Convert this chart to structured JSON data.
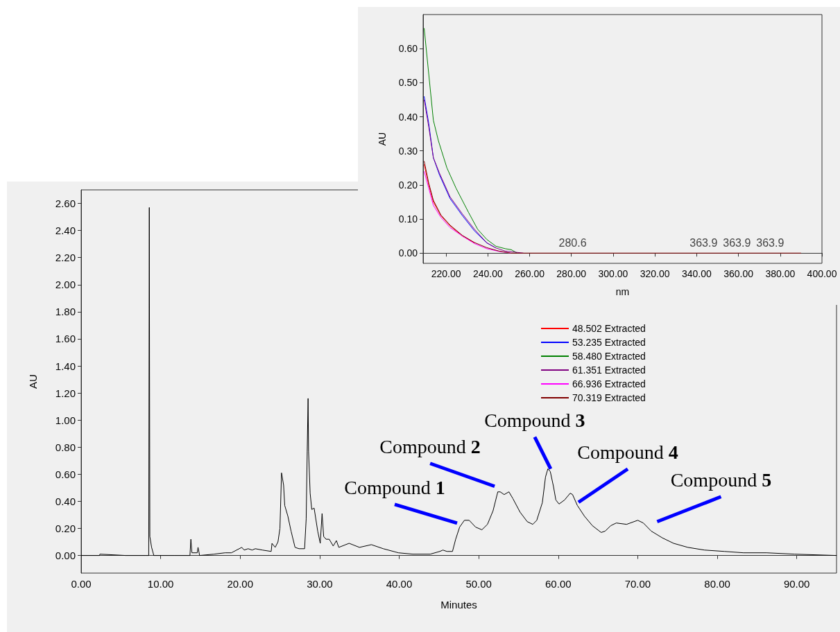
{
  "chart_data": [
    {
      "type": "line",
      "xlabel": "Minutes",
      "ylabel": "AU",
      "xlim": [
        0,
        95
      ],
      "ylim": [
        -0.13,
        2.7
      ],
      "xticks": [
        {
          "value": 0,
          "label": "0.00"
        },
        {
          "value": 10,
          "label": "10.00"
        },
        {
          "value": 20,
          "label": "20.00"
        },
        {
          "value": 30,
          "label": "30.00"
        },
        {
          "value": 40,
          "label": "40.00"
        },
        {
          "value": 50,
          "label": "50.00"
        },
        {
          "value": 60,
          "label": "60.00"
        },
        {
          "value": 70,
          "label": "70.00"
        },
        {
          "value": 80,
          "label": "80.00"
        },
        {
          "value": 90,
          "label": "90.00"
        }
      ],
      "yticks": [
        {
          "value": 0,
          "label": "0.00"
        },
        {
          "value": 0.2,
          "label": "0.20"
        },
        {
          "value": 0.4,
          "label": "0.40"
        },
        {
          "value": 0.6,
          "label": "0.60"
        },
        {
          "value": 0.8,
          "label": "0.80"
        },
        {
          "value": 1,
          "label": "1.00"
        },
        {
          "value": 1.2,
          "label": "1.20"
        },
        {
          "value": 1.4,
          "label": "1.40"
        },
        {
          "value": 1.6,
          "label": "1.60"
        },
        {
          "value": 1.8,
          "label": "1.80"
        },
        {
          "value": 2,
          "label": "2.00"
        },
        {
          "value": 2.2,
          "label": "2.20"
        },
        {
          "value": 2.4,
          "label": "2.40"
        },
        {
          "value": 2.6,
          "label": "2.60"
        }
      ],
      "series": [
        {
          "color": "#000000",
          "x": [
            0,
            2.3,
            2.36,
            5.6,
            8.1,
            8.5,
            8.57,
            8.64,
            8.86,
            9.14,
            11.7,
            13.68,
            13.8,
            13.93,
            14.6,
            14.7,
            14.9,
            16.7,
            18.1,
            18.9,
            20.2,
            20.5,
            21.0,
            21.5,
            21.9,
            22.8,
            23.9,
            24.0,
            24.4,
            24.75,
            25.0,
            25.2,
            25.46,
            25.6,
            26.0,
            26.4,
            26.9,
            27.4,
            28.1,
            28.3,
            28.43,
            28.54,
            28.6,
            28.8,
            29.0,
            29.3,
            29.75,
            30.07,
            30.3,
            30.5,
            30.8,
            31.2,
            31.7,
            32.1,
            32.4,
            33.7,
            35.0,
            36.5,
            38.0,
            39.9,
            41.7,
            43.9,
            45.1,
            45.5,
            46.0,
            46.7,
            47.1,
            47.6,
            48.2,
            48.8,
            49.6,
            50.4,
            51.1,
            51.8,
            52.4,
            52.7,
            53.2,
            53.8,
            54.3,
            55.2,
            56.1,
            56.8,
            57.3,
            58.0,
            58.4,
            58.7,
            59.0,
            59.4,
            59.7,
            60.1,
            60.8,
            61.5,
            61.8,
            62.4,
            63.3,
            64.3,
            65.4,
            65.9,
            66.6,
            67.3,
            68.6,
            70.0,
            70.7,
            71.7,
            73.1,
            74.5,
            76.3,
            78.4,
            80.9,
            83.3,
            86.2,
            89.7,
            95.0
          ],
          "values": [
            0,
            0,
            0.01,
            0,
            0,
            0,
            2.57,
            0.14,
            0.06,
            0,
            0,
            0,
            0.12,
            0.02,
            0.02,
            0.06,
            0,
            0.01,
            0.02,
            0.02,
            0.06,
            0.04,
            0.05,
            0.04,
            0.05,
            0.04,
            0.03,
            0.09,
            0.06,
            0.1,
            0.2,
            0.61,
            0.52,
            0.37,
            0.29,
            0.18,
            0.06,
            0.05,
            0.05,
            0.27,
            0.77,
            1.16,
            0.77,
            0.46,
            0.34,
            0.35,
            0.18,
            0.09,
            0.31,
            0.14,
            0.12,
            0.12,
            0.07,
            0.11,
            0.06,
            0.09,
            0.06,
            0.08,
            0.05,
            0.02,
            0.01,
            0.01,
            0.03,
            0.04,
            0.03,
            0.03,
            0.12,
            0.21,
            0.26,
            0.26,
            0.21,
            0.19,
            0.23,
            0.33,
            0.47,
            0.47,
            0.45,
            0.47,
            0.42,
            0.32,
            0.25,
            0.23,
            0.26,
            0.39,
            0.58,
            0.64,
            0.62,
            0.51,
            0.41,
            0.38,
            0.41,
            0.46,
            0.45,
            0.37,
            0.29,
            0.22,
            0.17,
            0.18,
            0.22,
            0.24,
            0.23,
            0.26,
            0.24,
            0.18,
            0.13,
            0.09,
            0.06,
            0.04,
            0.03,
            0.02,
            0.02,
            0.01,
            0
          ]
        }
      ],
      "annotations": [
        {
          "text": "Compound 1",
          "x": 48.5,
          "y": 0.26
        },
        {
          "text": "Compound 2",
          "x": 52.7,
          "y": 0.47
        },
        {
          "text": "Compound 3",
          "x": 58.7,
          "y": 0.64
        },
        {
          "text": "Compound 4",
          "x": 61.5,
          "y": 0.46
        },
        {
          "text": "Compound 5",
          "x": 70.0,
          "y": 0.26
        }
      ]
    },
    {
      "type": "line",
      "xlabel": "nm",
      "ylabel": "AU",
      "legend": "bottom",
      "xlim": [
        209,
        400
      ],
      "ylim": [
        -0.03,
        0.7
      ],
      "xticks": [
        {
          "value": 220,
          "label": "220.00"
        },
        {
          "value": 240,
          "label": "240.00"
        },
        {
          "value": 260,
          "label": "260.00"
        },
        {
          "value": 280,
          "label": "280.00"
        },
        {
          "value": 300,
          "label": "300.00"
        },
        {
          "value": 320,
          "label": "320.00"
        },
        {
          "value": 340,
          "label": "340.00"
        },
        {
          "value": 360,
          "label": "360.00"
        },
        {
          "value": 380,
          "label": "380.00"
        },
        {
          "value": 400,
          "label": "400.00"
        }
      ],
      "yticks": [
        {
          "value": 0,
          "label": "0.00"
        },
        {
          "value": 0.1,
          "label": "0.10"
        },
        {
          "value": 0.2,
          "label": "0.20"
        },
        {
          "value": 0.3,
          "label": "0.30"
        },
        {
          "value": 0.4,
          "label": "0.40"
        },
        {
          "value": 0.5,
          "label": "0.50"
        },
        {
          "value": 0.6,
          "label": "0.60"
        }
      ],
      "series": [
        {
          "name": "48.502 Extracted",
          "color": "#ff0000",
          "x": [
            209.5,
            211.7,
            213.9,
            217.5,
            221.9,
            227.8,
            233.6
          ],
          "values": [
            0.26,
            0.2,
            0.15,
            0.11,
            0.08,
            0.05,
            0.03
          ]
        },
        {
          "name": "53.235 Extracted",
          "color": "#0000ff",
          "x": [
            209.5,
            211.7,
            213.9,
            216.8,
            221.9,
            227.8,
            233.6,
            239.5,
            243.9
          ],
          "values": [
            0.46,
            0.38,
            0.28,
            0.23,
            0.16,
            0.11,
            0.065,
            0.03,
            0.015
          ]
        },
        {
          "name": "58.480 Extracted",
          "color": "#008000",
          "x": [
            209.5,
            213.9,
            216.3,
            220.4,
            224.8,
            230.7,
            235.1,
            239.5,
            243.9,
            248.3,
            251.2,
            254.1
          ],
          "values": [
            0.66,
            0.39,
            0.33,
            0.25,
            0.19,
            0.12,
            0.07,
            0.04,
            0.02,
            0.013,
            0.01,
            0
          ]
        },
        {
          "name": "61.351 Extracted",
          "color": "#800080",
          "x": [
            209.5,
            211.7,
            213.9,
            216.8,
            221.9,
            227.8,
            233.6,
            239.5,
            243.9,
            248.3,
            257
          ],
          "values": [
            0.45,
            0.37,
            0.28,
            0.235,
            0.165,
            0.115,
            0.07,
            0.03,
            0.015,
            0.006,
            0
          ]
        },
        {
          "name": "66.936 Extracted",
          "color": "#ff00ff",
          "x": [
            209.5,
            211.7,
            213.9,
            217.5,
            221.9,
            227.8,
            233.6,
            239.5,
            245.3,
            251
          ],
          "values": [
            0.24,
            0.19,
            0.14,
            0.105,
            0.075,
            0.05,
            0.028,
            0.013,
            0.005,
            0
          ]
        },
        {
          "name": "70.319 Extracted",
          "color": "#800000",
          "x": [
            209.5,
            211.7,
            213.9,
            217.5,
            221.9,
            227.8,
            233.6,
            239.5,
            245.3,
            251,
            390
          ],
          "values": [
            0.27,
            0.205,
            0.155,
            0.112,
            0.082,
            0.052,
            0.031,
            0.016,
            0.006,
            0,
            0
          ]
        }
      ],
      "annotations": [
        {
          "text": "280.6",
          "x": 280.6,
          "y": 0
        },
        {
          "text": "363.9",
          "x": 363.9,
          "y": 0
        },
        {
          "text": "363.9",
          "x": 363.9,
          "y": 0
        },
        {
          "text": "363.9",
          "x": 363.9,
          "y": 0
        }
      ]
    }
  ]
}
